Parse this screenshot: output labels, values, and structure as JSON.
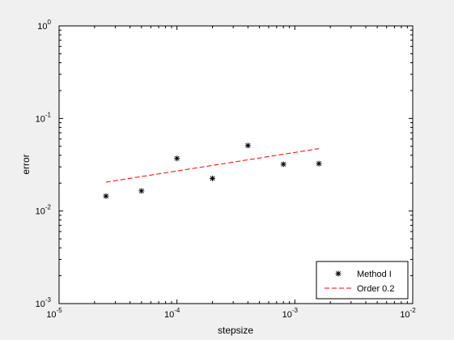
{
  "chart_data": {
    "type": "scatter",
    "xlabel": "stepsize",
    "ylabel": "error",
    "xscale": "log",
    "yscale": "log",
    "xlim": [
      1e-05,
      0.01
    ],
    "ylim": [
      0.001,
      1
    ],
    "x_ticks": [
      {
        "value": 1e-05,
        "base": "10",
        "exp": "-5"
      },
      {
        "value": 0.0001,
        "base": "10",
        "exp": "-4"
      },
      {
        "value": 0.001,
        "base": "10",
        "exp": "-3"
      },
      {
        "value": 0.01,
        "base": "10",
        "exp": "-2"
      }
    ],
    "y_ticks": [
      {
        "value": 0.001,
        "base": "10",
        "exp": "-3"
      },
      {
        "value": 0.01,
        "base": "10",
        "exp": "-2"
      },
      {
        "value": 0.1,
        "base": "10",
        "exp": "-1"
      },
      {
        "value": 1,
        "base": "10",
        "exp": "0"
      }
    ],
    "grid": false,
    "legend_position": "bottom-right",
    "series": [
      {
        "name": "Method I",
        "style": "marker-star",
        "color": "#000000",
        "x": [
          2.5e-05,
          5e-05,
          0.0001,
          0.0002,
          0.0004,
          0.0008,
          0.0016
        ],
        "y": [
          0.0145,
          0.0165,
          0.037,
          0.0225,
          0.051,
          0.032,
          0.0325
        ]
      },
      {
        "name": "Order 0.2",
        "style": "dashed-line",
        "color": "#ff0000",
        "x": [
          2.5e-05,
          0.0016
        ],
        "y": [
          0.0205,
          0.0472
        ]
      }
    ]
  }
}
